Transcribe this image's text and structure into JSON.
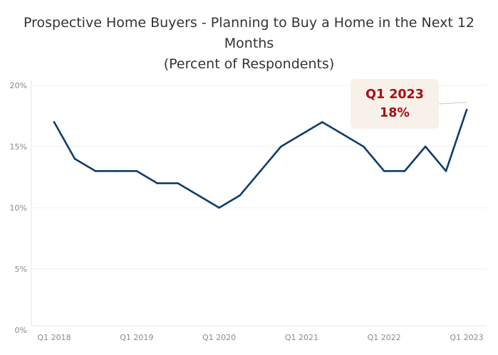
{
  "chart_data": {
    "type": "line",
    "title": "Prospective Home Buyers - Planning to Buy a Home in the Next 12 Months",
    "title_lines": [
      "Prospective Home Buyers - Planning to Buy a Home in the Next 12",
      "Months"
    ],
    "subtitle": "(Percent of Respondents)",
    "xlabel": "",
    "ylabel": "",
    "x": [
      "Q1 2018",
      "Q2 2018",
      "Q3 2018",
      "Q4 2018",
      "Q1 2019",
      "Q2 2019",
      "Q3 2019",
      "Q4 2019",
      "Q1 2020",
      "Q2 2020",
      "Q3 2020",
      "Q4 2020",
      "Q1 2021",
      "Q2 2021",
      "Q3 2021",
      "Q4 2021",
      "Q1 2022",
      "Q2 2022",
      "Q3 2022",
      "Q4 2022",
      "Q1 2023"
    ],
    "series": [
      {
        "values": [
          17,
          14,
          13,
          13,
          13,
          12,
          12,
          11,
          10,
          11,
          13,
          15,
          16,
          17,
          16,
          15,
          13,
          13,
          15,
          13,
          18
        ],
        "color": "#0e3d6b"
      }
    ],
    "x_tick_labels": [
      "Q1 2018",
      "Q1 2019",
      "Q1 2020",
      "Q1 2021",
      "Q1 2022",
      "Q1 2023"
    ],
    "y_tick_labels": [
      "0%",
      "5%",
      "10%",
      "15%",
      "20%"
    ],
    "y_ticks": [
      0,
      5,
      10,
      15,
      20
    ],
    "ylim": [
      0,
      20
    ],
    "grid": "horizontal",
    "annotation": {
      "label": "Q1 2023",
      "value": "18%",
      "box_color": "#f7f1ea",
      "text_color": "#a60f12"
    }
  }
}
